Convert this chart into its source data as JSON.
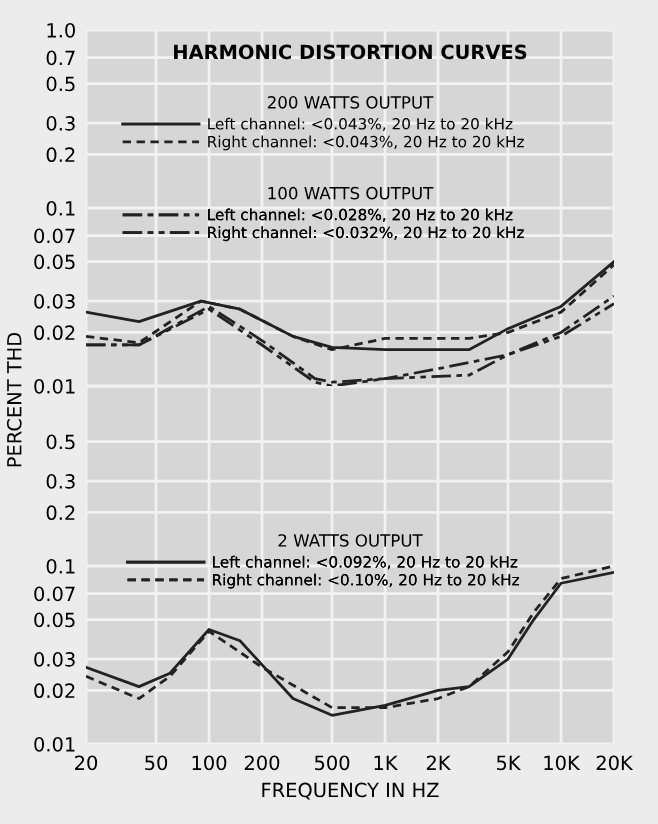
{
  "chart_data": [
    {
      "type": "line",
      "title": "HARMONIC DISTORTION CURVES",
      "ylabel": "PERCENT THD",
      "log": "xy",
      "grid": true,
      "legend": "top",
      "tick_labels": "y",
      "annotations": [
        "200 WATTS OUTPUT",
        "100 WATTS OUTPUT"
      ],
      "xlim": [
        20,
        20000
      ],
      "ylim": [
        0.01,
        1
      ],
      "yticks": [
        {
          "value": 1,
          "label": "1.0"
        },
        0.7,
        0.5,
        0.3,
        0.2,
        0.1,
        0.07,
        0.05,
        0.03,
        0.02,
        0.01
      ],
      "xticks": [
        20,
        50,
        100,
        200,
        500,
        1000,
        2000,
        5000,
        10000,
        20000
      ],
      "series": [
        {
          "name": "Left channel: <0.043%, 20 Hz to 20 kHz",
          "color": "#222222",
          "line_style": "solid",
          "x": [
            20,
            40,
            90,
            150,
            300,
            500,
            1000,
            3000,
            5000,
            10000,
            20000
          ],
          "values": [
            0.026,
            0.023,
            0.03,
            0.027,
            0.019,
            0.0165,
            0.016,
            0.016,
            0.021,
            0.028,
            0.05
          ]
        },
        {
          "name": "Right channel: <0.043%, 20 Hz to 20 kHz",
          "color": "#222222",
          "line_style": "dashed",
          "x": [
            20,
            40,
            90,
            150,
            300,
            500,
            1000,
            3000,
            5000,
            10000,
            20000
          ],
          "values": [
            0.019,
            0.0175,
            0.03,
            0.027,
            0.019,
            0.016,
            0.0185,
            0.0185,
            0.02,
            0.026,
            0.048
          ]
        },
        {
          "name": "Left channel: <0.028%, 20 Hz to 20 kHz",
          "color": "#222222",
          "line_style": "dashdot",
          "x": [
            20,
            40,
            100,
            200,
            400,
            500,
            1000,
            2000,
            5000,
            10000,
            20000
          ],
          "values": [
            0.017,
            0.017,
            0.028,
            0.018,
            0.011,
            0.0105,
            0.011,
            0.0125,
            0.015,
            0.02,
            0.032
          ]
        },
        {
          "name": "Right channel: <0.032%, 20 Hz to 20 kHz",
          "color": "#222222",
          "line_style": "dashdotdot",
          "x": [
            20,
            40,
            100,
            200,
            400,
            500,
            1000,
            3000,
            5000,
            10000,
            20000
          ],
          "values": [
            0.017,
            0.017,
            0.027,
            0.017,
            0.0105,
            0.01,
            0.011,
            0.0115,
            0.015,
            0.019,
            0.029
          ]
        }
      ]
    },
    {
      "type": "line",
      "xlabel": "FREQUENCY IN HZ",
      "log": "xy",
      "grid": true,
      "legend": "center",
      "annotations": [
        "2 WATTS OUTPUT"
      ],
      "xlim": [
        20,
        20000
      ],
      "ylim": [
        0.01,
        1
      ],
      "yticks": [
        0.5,
        0.3,
        0.2,
        0.1,
        0.07,
        0.05,
        0.03,
        0.02,
        0.01
      ],
      "xticks": [
        20,
        50,
        100,
        200,
        500,
        {
          "value": 1000,
          "label": "1K"
        },
        {
          "value": 2000,
          "label": "2K"
        },
        {
          "value": 5000,
          "label": "5K"
        },
        {
          "value": 10000,
          "label": "10K"
        },
        {
          "value": 20000,
          "label": "20K"
        }
      ],
      "series": [
        {
          "name": "Left channel: <0.092%, 20 Hz to 20 kHz",
          "color": "#222222",
          "line_style": "solid",
          "x": [
            20,
            40,
            60,
            100,
            150,
            300,
            500,
            1000,
            2000,
            3000,
            5000,
            7000,
            10000,
            20000
          ],
          "values": [
            0.027,
            0.021,
            0.025,
            0.044,
            0.038,
            0.018,
            0.0145,
            0.0165,
            0.02,
            0.021,
            0.03,
            0.05,
            0.08,
            0.092
          ]
        },
        {
          "name": "Right channel: <0.10%, 20 Hz to 20 kHz",
          "color": "#222222",
          "line_style": "dashed",
          "x": [
            20,
            40,
            60,
            100,
            200,
            500,
            1000,
            2000,
            3000,
            5000,
            7000,
            10000,
            20000
          ],
          "values": [
            0.024,
            0.018,
            0.024,
            0.043,
            0.027,
            0.016,
            0.016,
            0.018,
            0.021,
            0.033,
            0.055,
            0.085,
            0.1
          ]
        }
      ]
    }
  ]
}
